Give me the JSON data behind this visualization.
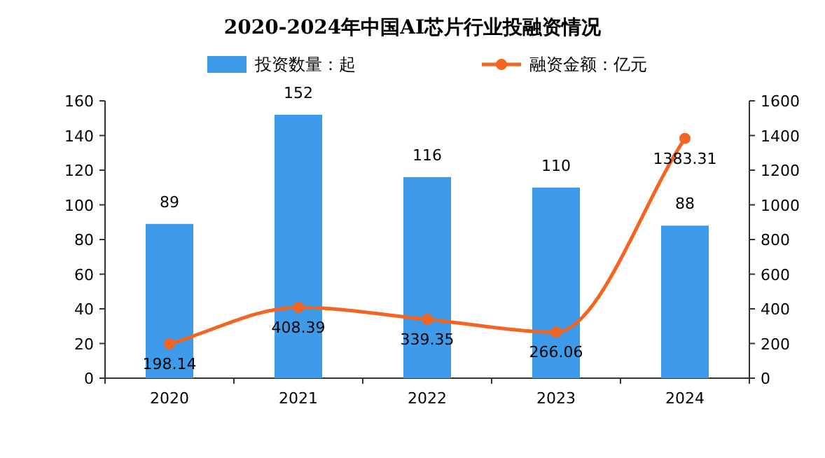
{
  "chart_data": {
    "type": "bar",
    "title": "2020-2024年中国AI芯片行业投融资情况",
    "categories": [
      "2020",
      "2021",
      "2022",
      "2023",
      "2024"
    ],
    "series": [
      {
        "name": "投资数量：起",
        "color": "#3d9be9",
        "values": [
          89,
          152,
          116,
          110,
          88
        ]
      },
      {
        "name": "融资金额：亿元",
        "type": "line",
        "axis": "y2",
        "color": "#f26522",
        "values": [
          198.14,
          408.39,
          339.35,
          266.06,
          1383.31
        ]
      }
    ],
    "ylim": [
      0,
      160
    ],
    "yticks": [
      0,
      20,
      40,
      60,
      80,
      100,
      120,
      140,
      160
    ],
    "y2lim": [
      0,
      1600
    ],
    "y2ticks": [
      0,
      200,
      400,
      600,
      800,
      1000,
      1200,
      1400,
      1600
    ],
    "data_labels": true,
    "legend": "top",
    "marker": "circle",
    "grid": false
  }
}
